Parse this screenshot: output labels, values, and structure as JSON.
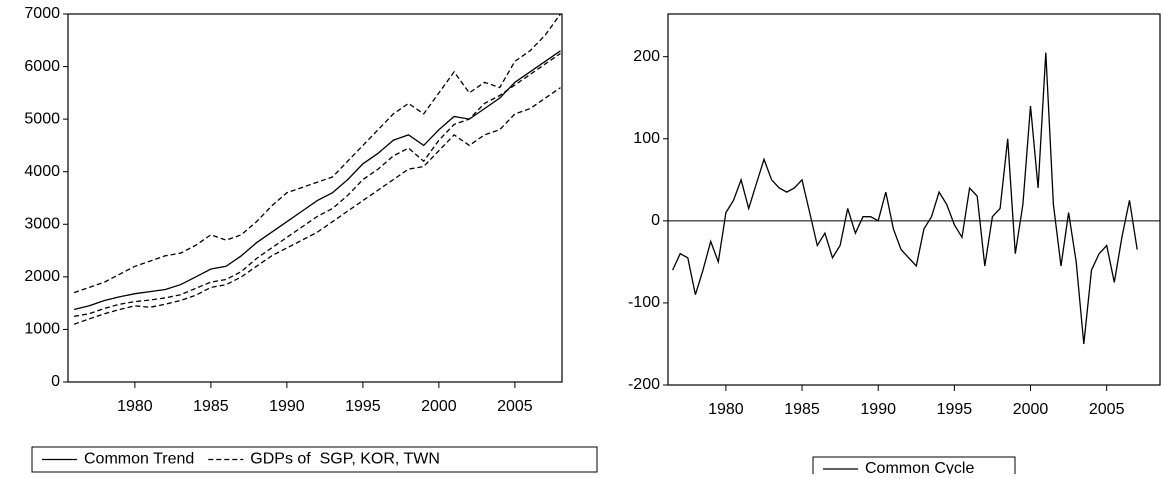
{
  "chart_data": [
    {
      "type": "line",
      "x": [
        1976,
        1977,
        1978,
        1979,
        1980,
        1981,
        1982,
        1983,
        1984,
        1985,
        1986,
        1987,
        1988,
        1989,
        1990,
        1991,
        1992,
        1993,
        1994,
        1995,
        1996,
        1997,
        1998,
        1999,
        2000,
        2001,
        2002,
        2003,
        2004,
        2005,
        2006,
        2007,
        2008
      ],
      "series": [
        {
          "name": "Common Trend",
          "color": "#000000",
          "style": "solid",
          "values": [
            [
              1380,
              1450,
              1550,
              1620,
              1680,
              1720,
              1760,
              1850,
              2000,
              2150,
              2200,
              2400,
              2650,
              2850,
              3050,
              3250,
              3450,
              3600,
              3850,
              4150,
              4350,
              4600,
              4700,
              4500,
              4800,
              5050,
              5000,
              5200,
              5400,
              5700,
              5900,
              6100,
              6300
            ]
          ]
        },
        {
          "name": "GDPs of  SGP, KOR, TWN",
          "color": "#000000",
          "style": "dashed",
          "values": [
            [
              1700,
              1800,
              1900,
              2050,
              2200,
              2300,
              2400,
              2450,
              2600,
              2800,
              2700,
              2800,
              3050,
              3350,
              3600,
              3700,
              3800,
              3900,
              4200,
              4500,
              4800,
              5100,
              5300,
              5100,
              5500,
              5900,
              5500,
              5700,
              5600,
              6100,
              6300,
              6600,
              7000
            ],
            [
              1250,
              1300,
              1400,
              1480,
              1530,
              1560,
              1600,
              1660,
              1780,
              1900,
              1950,
              2100,
              2350,
              2550,
              2750,
              2950,
              3150,
              3300,
              3550,
              3850,
              4050,
              4300,
              4450,
              4200,
              4600,
              4900,
              5000,
              5300,
              5450,
              5650,
              5850,
              6050,
              6250
            ],
            [
              1100,
              1200,
              1300,
              1380,
              1450,
              1420,
              1480,
              1550,
              1650,
              1800,
              1850,
              2000,
              2200,
              2400,
              2550,
              2700,
              2850,
              3050,
              3250,
              3450,
              3650,
              3850,
              4050,
              4100,
              4400,
              4700,
              4500,
              4700,
              4800,
              5100,
              5200,
              5400,
              5600
            ]
          ]
        }
      ],
      "xlim": [
        1975.6,
        2008.1
      ],
      "xticks": [
        1980,
        1985,
        1990,
        1995,
        2000,
        2005
      ],
      "ylim": [
        0,
        7000
      ],
      "yticks": [
        0,
        1000,
        2000,
        3000,
        4000,
        5000,
        6000,
        7000
      ],
      "legend": "bottom"
    },
    {
      "type": "line",
      "x": [
        1976.5,
        1977,
        1977.5,
        1978,
        1978.5,
        1979,
        1979.5,
        1980,
        1980.5,
        1981,
        1981.5,
        1982,
        1982.5,
        1983,
        1983.5,
        1984,
        1984.5,
        1985,
        1985.5,
        1986,
        1986.5,
        1987,
        1987.5,
        1988,
        1988.5,
        1989,
        1989.5,
        1990,
        1990.5,
        1991,
        1991.5,
        1992,
        1992.5,
        1993,
        1993.5,
        1994,
        1994.5,
        1995,
        1995.5,
        1996,
        1996.5,
        1997,
        1997.5,
        1998,
        1998.5,
        1999,
        1999.5,
        2000,
        2000.5,
        2001,
        2001.5,
        2002,
        2002.5,
        2003,
        2003.5,
        2004,
        2004.5,
        2005,
        2005.5,
        2006,
        2006.5,
        2007
      ],
      "series": [
        {
          "name": "Common Cycle",
          "color": "#000000",
          "style": "solid",
          "values": [
            [
              -60,
              -40,
              -45,
              -90,
              -60,
              -25,
              -50,
              10,
              25,
              50,
              15,
              45,
              75,
              50,
              40,
              35,
              40,
              50,
              10,
              -30,
              -15,
              -45,
              -30,
              15,
              -15,
              5,
              5,
              0,
              35,
              -10,
              -35,
              -45,
              -55,
              -10,
              5,
              35,
              20,
              -5,
              -20,
              40,
              30,
              -55,
              5,
              15,
              100,
              -40,
              20,
              140,
              40,
              205,
              20,
              -55,
              10,
              -50,
              -150,
              -60,
              -40,
              -30,
              -75,
              -20,
              25,
              -35
            ]
          ]
        }
      ],
      "xlim": [
        1976.2,
        2008.5
      ],
      "xticks": [
        1980,
        1985,
        1990,
        1995,
        2000,
        2005
      ],
      "ylim": [
        -200,
        252
      ],
      "yticks": [
        -200,
        -100,
        0,
        100,
        200
      ],
      "zero_line": true,
      "legend": "bottom"
    }
  ]
}
